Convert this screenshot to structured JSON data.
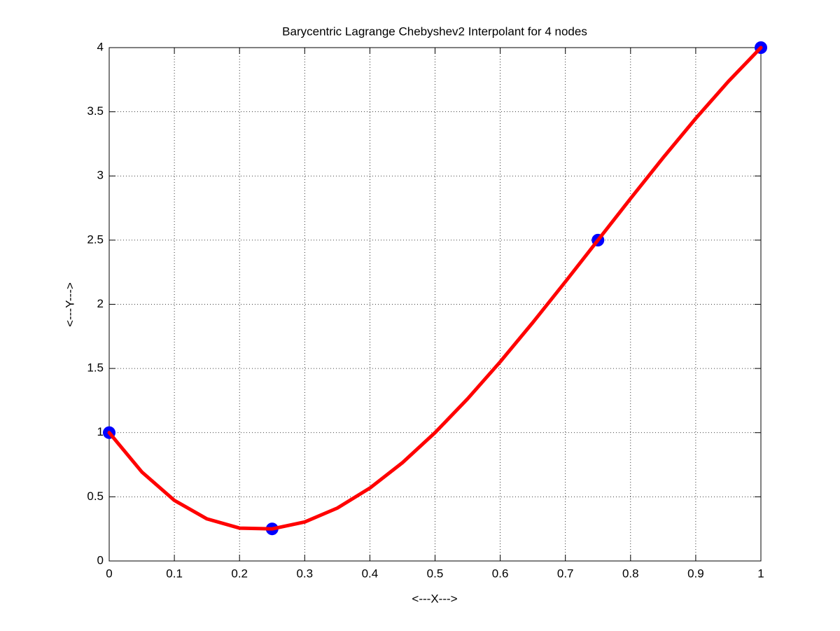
{
  "chart_data": {
    "type": "line",
    "title": "Barycentric Lagrange Chebyshev2 Interpolant for 4 nodes",
    "xlabel": "<---X--->",
    "ylabel": "<---Y--->",
    "xlim": [
      0,
      1
    ],
    "ylim": [
      0,
      4
    ],
    "xticks": [
      0,
      0.1,
      0.2,
      0.3,
      0.4,
      0.5,
      0.6,
      0.7,
      0.8,
      0.9,
      1
    ],
    "yticks": [
      0,
      0.5,
      1,
      1.5,
      2,
      2.5,
      3,
      3.5,
      4
    ],
    "grid": true,
    "series": [
      {
        "style": "markers",
        "color": "#0000ff",
        "x": [
          0,
          0.25,
          0.75,
          1
        ],
        "values": [
          1,
          0.25,
          2.5,
          4
        ]
      },
      {
        "style": "line",
        "color": "#ff0000",
        "x": [
          0,
          0.05,
          0.1,
          0.15,
          0.2,
          0.25,
          0.3,
          0.35,
          0.4,
          0.45,
          0.5,
          0.55,
          0.6,
          0.65,
          0.7,
          0.75,
          0.8,
          0.85,
          0.9,
          0.95,
          1
        ],
        "values": [
          1,
          0.694,
          0.472,
          0.328,
          0.256,
          0.25,
          0.304,
          0.412,
          0.568,
          0.766,
          1,
          1.264,
          1.552,
          1.858,
          2.176,
          2.5,
          2.824,
          3.142,
          3.448,
          3.736,
          4
        ]
      }
    ]
  }
}
